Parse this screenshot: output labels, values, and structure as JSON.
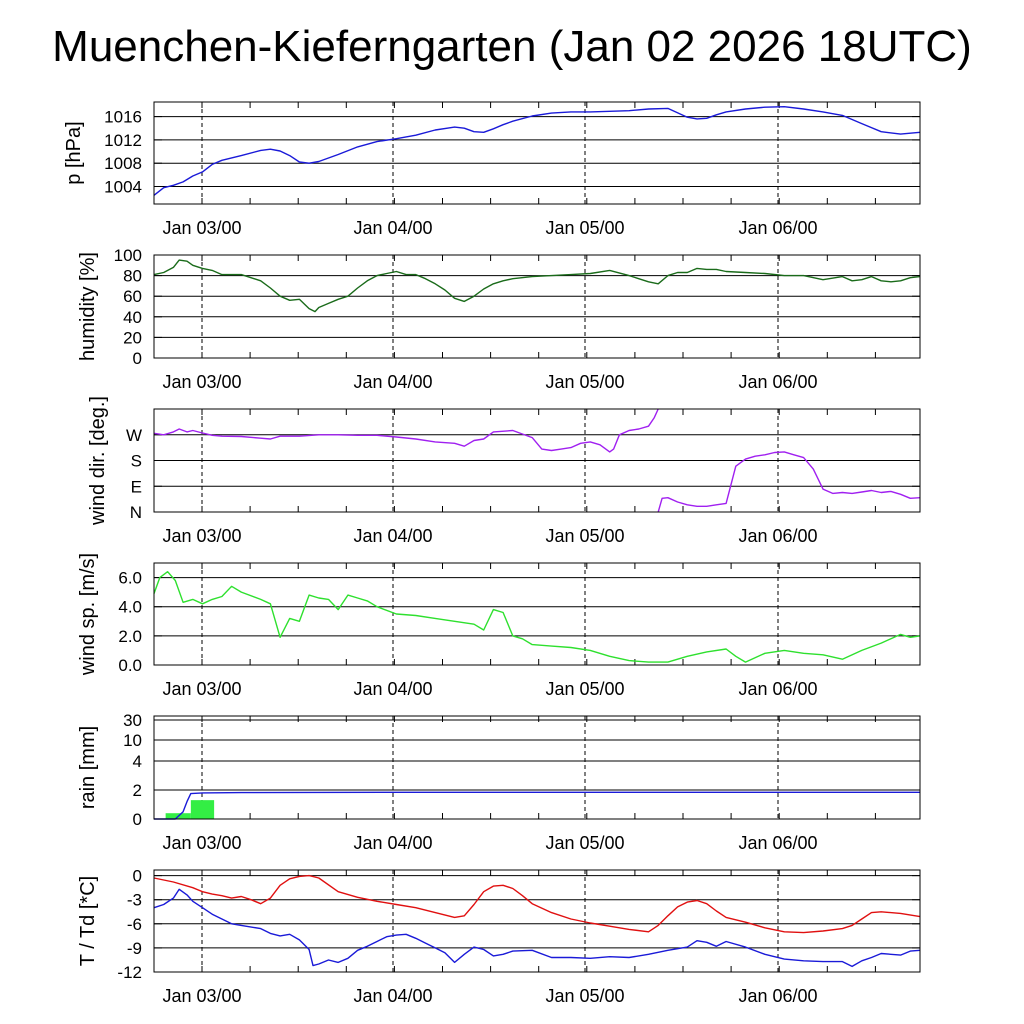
{
  "title": "Muenchen-Kieferngarten (Jan 02 2026 18UTC)",
  "chart_data": [
    {
      "type": "line",
      "ylabel": "p [hPa]",
      "ylim": [
        1001,
        1018.5
      ],
      "yticks": [
        1004,
        1008,
        1012,
        1016
      ],
      "yticklabels": [
        "1004",
        "1008",
        "1012",
        "1016"
      ],
      "xlim": [
        -0.25,
        3.7
      ],
      "xticklabels": [
        "Jan 03/00",
        "Jan 04/00",
        "Jan 05/00",
        "Jan 06/00"
      ],
      "grid": "horizontal lines at ticks, dashed vertical lines at midnight",
      "series": [
        {
          "color": "#1a1ad8",
          "x": [
            -0.25,
            -0.2,
            -0.15,
            -0.1,
            -0.05,
            0,
            0.05,
            0.1,
            0.2,
            0.3,
            0.35,
            0.4,
            0.45,
            0.5,
            0.55,
            0.6,
            0.7,
            0.8,
            0.9,
            1.0,
            1.1,
            1.2,
            1.3,
            1.35,
            1.4,
            1.45,
            1.5,
            1.55,
            1.6,
            1.7,
            1.8,
            1.9,
            2.0,
            2.1,
            2.2,
            2.3,
            2.4,
            2.5,
            2.55,
            2.6,
            2.65,
            2.7,
            2.8,
            2.9,
            3.0,
            3.1,
            3.2,
            3.3,
            3.4,
            3.5,
            3.6,
            3.7
          ],
          "y": [
            1002.5,
            1003.8,
            1004.2,
            1004.8,
            1005.8,
            1006.5,
            1007.8,
            1008.5,
            1009.3,
            1010.2,
            1010.4,
            1010.1,
            1009.3,
            1008.2,
            1008.0,
            1008.3,
            1009.5,
            1010.8,
            1011.7,
            1012.2,
            1012.8,
            1013.7,
            1014.2,
            1014.0,
            1013.4,
            1013.3,
            1013.9,
            1014.6,
            1015.2,
            1016.1,
            1016.6,
            1016.8,
            1016.8,
            1016.9,
            1017.0,
            1017.3,
            1017.4,
            1015.9,
            1015.6,
            1015.7,
            1016.3,
            1016.8,
            1017.3,
            1017.6,
            1017.7,
            1017.3,
            1016.8,
            1016.2,
            1014.8,
            1013.4,
            1013.0,
            1013.3
          ]
        }
      ]
    },
    {
      "type": "line",
      "ylabel": "humidity [%]",
      "ylim": [
        0,
        100
      ],
      "yticks": [
        0,
        20,
        40,
        60,
        80,
        100
      ],
      "yticklabels": [
        "0",
        "20",
        "40",
        "60",
        "80",
        "100"
      ],
      "xlim": [
        -0.25,
        3.7
      ],
      "xticklabels": [
        "Jan 03/00",
        "Jan 04/00",
        "Jan 05/00",
        "Jan 06/00"
      ],
      "series": [
        {
          "color": "#1a6b1a",
          "x": [
            -0.25,
            -0.2,
            -0.15,
            -0.12,
            -0.08,
            -0.05,
            0,
            0.05,
            0.1,
            0.2,
            0.3,
            0.35,
            0.4,
            0.45,
            0.5,
            0.55,
            0.58,
            0.6,
            0.65,
            0.7,
            0.75,
            0.8,
            0.85,
            0.9,
            0.95,
            1.0,
            1.05,
            1.1,
            1.15,
            1.2,
            1.25,
            1.3,
            1.35,
            1.4,
            1.45,
            1.5,
            1.55,
            1.6,
            1.7,
            1.8,
            1.9,
            2.0,
            2.1,
            2.2,
            2.3,
            2.35,
            2.4,
            2.45,
            2.5,
            2.55,
            2.6,
            2.65,
            2.7,
            2.8,
            2.9,
            3.0,
            3.1,
            3.2,
            3.3,
            3.35,
            3.4,
            3.45,
            3.5,
            3.55,
            3.6,
            3.65,
            3.7
          ],
          "y": [
            81,
            83,
            88,
            95,
            94,
            90,
            87,
            85,
            81,
            81,
            75,
            68,
            60,
            56,
            57,
            48,
            45,
            49,
            53,
            57,
            60,
            68,
            75,
            80,
            82,
            84,
            81,
            81,
            77,
            72,
            66,
            58,
            55,
            60,
            67,
            72,
            75,
            77,
            79,
            80,
            81,
            82,
            85,
            80,
            74,
            72,
            80,
            83,
            83,
            87,
            86,
            86,
            84,
            83,
            82,
            80,
            80,
            76,
            79,
            75,
            76,
            79,
            75,
            74,
            75,
            78,
            79
          ]
        }
      ]
    },
    {
      "type": "line",
      "ylabel": "wind dir. [deg.]",
      "ylim": [
        0,
        360
      ],
      "yticks": [
        0,
        90,
        180,
        270
      ],
      "yticklabels": [
        "N",
        "E",
        "S",
        "W"
      ],
      "xlim": [
        -0.25,
        3.7
      ],
      "xticklabels": [
        "Jan 03/00",
        "Jan 04/00",
        "Jan 05/00",
        "Jan 06/00"
      ],
      "series": [
        {
          "color": "#a020f0",
          "x": [
            -0.25,
            -0.2,
            -0.15,
            -0.12,
            -0.08,
            -0.05,
            0,
            0.05,
            0.1,
            0.2,
            0.3,
            0.35,
            0.4,
            0.5,
            0.6,
            0.7,
            0.8,
            0.9,
            1.0,
            1.1,
            1.2,
            1.3,
            1.35,
            1.4,
            1.45,
            1.5,
            1.6,
            1.7,
            1.75,
            1.8,
            1.85,
            1.9,
            1.95,
            2.0,
            2.05,
            2.1,
            2.12,
            2.15,
            2.2,
            2.25,
            2.3,
            2.33,
            2.35
          ],
          "y": [
            275,
            270,
            280,
            290,
            280,
            285,
            276,
            268,
            265,
            264,
            258,
            255,
            265,
            265,
            270,
            270,
            268,
            268,
            262,
            255,
            245,
            240,
            230,
            250,
            255,
            280,
            285,
            260,
            220,
            215,
            220,
            225,
            240,
            245,
            235,
            210,
            220,
            270,
            285,
            290,
            300,
            330,
            360
          ]
        },
        {
          "color": "#a020f0",
          "x": [
            2.35,
            2.37,
            2.4,
            2.45,
            2.5,
            2.55,
            2.6,
            2.65,
            2.7,
            2.75,
            2.8,
            2.85,
            2.9,
            2.95,
            3.0,
            3.05,
            3.1,
            3.15,
            3.2,
            3.25,
            3.3,
            3.35,
            3.4,
            3.45,
            3.5,
            3.55,
            3.6,
            3.65,
            3.7
          ],
          "y": [
            0,
            48,
            50,
            35,
            25,
            20,
            20,
            25,
            30,
            160,
            185,
            195,
            200,
            208,
            210,
            200,
            190,
            150,
            80,
            65,
            68,
            65,
            70,
            75,
            68,
            72,
            62,
            48,
            50
          ]
        }
      ]
    },
    {
      "type": "line",
      "ylabel": "wind sp. [m/s]",
      "ylim": [
        0,
        7
      ],
      "yticks": [
        0,
        2,
        4,
        6
      ],
      "yticklabels": [
        "0.0",
        "2.0",
        "4.0",
        "6.0"
      ],
      "xlim": [
        -0.25,
        3.7
      ],
      "xticklabels": [
        "Jan 03/00",
        "Jan 04/00",
        "Jan 05/00",
        "Jan 06/00"
      ],
      "series": [
        {
          "color": "#2ee02e",
          "x": [
            -0.25,
            -0.22,
            -0.18,
            -0.14,
            -0.1,
            -0.05,
            0,
            0.05,
            0.1,
            0.15,
            0.2,
            0.3,
            0.35,
            0.4,
            0.45,
            0.5,
            0.55,
            0.6,
            0.65,
            0.7,
            0.75,
            0.8,
            0.85,
            0.9,
            1.0,
            1.1,
            1.2,
            1.3,
            1.4,
            1.45,
            1.5,
            1.55,
            1.6,
            1.65,
            1.7,
            1.8,
            1.9,
            2.0,
            2.1,
            2.2,
            2.3,
            2.4,
            2.5,
            2.6,
            2.7,
            2.75,
            2.8,
            2.9,
            3.0,
            3.1,
            3.2,
            3.3,
            3.4,
            3.5,
            3.6,
            3.65,
            3.7
          ],
          "y": [
            4.9,
            6.0,
            6.4,
            5.8,
            4.3,
            4.5,
            4.2,
            4.5,
            4.7,
            5.4,
            5.0,
            4.5,
            4.2,
            1.9,
            3.2,
            3.0,
            4.8,
            4.6,
            4.5,
            3.8,
            4.8,
            4.6,
            4.4,
            4.0,
            3.5,
            3.4,
            3.2,
            3.0,
            2.8,
            2.4,
            3.8,
            3.6,
            2.0,
            1.8,
            1.4,
            1.3,
            1.2,
            1.0,
            0.6,
            0.3,
            0.2,
            0.2,
            0.6,
            0.9,
            1.1,
            0.6,
            0.2,
            0.8,
            1.0,
            0.8,
            0.7,
            0.4,
            1.0,
            1.5,
            2.1,
            1.9,
            2.0
          ]
        }
      ]
    },
    {
      "type": "bar",
      "ylabel": "rain [mm]",
      "yticks": [
        0,
        2,
        4,
        10,
        30
      ],
      "yticklabels": [
        "0",
        "2",
        "4",
        "10",
        "30"
      ],
      "scale": "nonlinear (stretched low range)",
      "xlim": [
        -0.25,
        3.7
      ],
      "xticklabels": [
        "Jan 03/00",
        "Jan 04/00",
        "Jan 05/00",
        "Jan 06/00"
      ],
      "bars": {
        "color": "#33ee44",
        "items": [
          {
            "x0": -0.19,
            "x1": -0.06,
            "value": 0.4
          },
          {
            "x0": -0.06,
            "x1": 0.06,
            "value": 1.3
          }
        ]
      },
      "series": [
        {
          "name": "",
          "color": "#1a1ad8",
          "x": [
            -0.25,
            -0.14,
            -0.1,
            -0.08,
            -0.06,
            0,
            0.2,
            1.0,
            2.0,
            3.0,
            3.7
          ],
          "y": [
            0,
            0,
            0.5,
            1.2,
            1.75,
            1.8,
            1.82,
            1.84,
            1.84,
            1.84,
            1.84
          ]
        }
      ]
    },
    {
      "type": "line",
      "ylabel": "T / Td [*C]",
      "ylim": [
        -12,
        0.7
      ],
      "yticks": [
        -12,
        -9,
        -6,
        -3,
        0
      ],
      "yticklabels": [
        "-12",
        "-9",
        "-6",
        "-3",
        "0"
      ],
      "xlim": [
        -0.25,
        3.7
      ],
      "xticklabels": [
        "Jan 03/00",
        "Jan 04/00",
        "Jan 05/00",
        "Jan 06/00"
      ],
      "series": [
        {
          "color": "#e01010",
          "x": [
            -0.25,
            -0.15,
            -0.05,
            0,
            0.05,
            0.1,
            0.15,
            0.2,
            0.25,
            0.3,
            0.35,
            0.4,
            0.45,
            0.5,
            0.55,
            0.6,
            0.7,
            0.8,
            0.9,
            1.0,
            1.1,
            1.2,
            1.3,
            1.35,
            1.4,
            1.45,
            1.5,
            1.55,
            1.6,
            1.65,
            1.7,
            1.8,
            1.9,
            2.0,
            2.1,
            2.2,
            2.3,
            2.35,
            2.4,
            2.45,
            2.5,
            2.55,
            2.6,
            2.65,
            2.7,
            2.8,
            2.9,
            3.0,
            3.1,
            3.2,
            3.3,
            3.35,
            3.4,
            3.45,
            3.5,
            3.6,
            3.7
          ],
          "y": [
            -0.3,
            -0.8,
            -1.5,
            -2.0,
            -2.3,
            -2.5,
            -2.8,
            -2.6,
            -3.0,
            -3.5,
            -2.8,
            -1.2,
            -0.4,
            -0.1,
            0.0,
            -0.3,
            -2.0,
            -2.7,
            -3.2,
            -3.6,
            -4.0,
            -4.6,
            -5.2,
            -5.0,
            -3.6,
            -2.0,
            -1.3,
            -1.2,
            -1.6,
            -2.5,
            -3.5,
            -4.6,
            -5.4,
            -5.9,
            -6.3,
            -6.7,
            -7.0,
            -6.2,
            -5.0,
            -3.9,
            -3.3,
            -3.1,
            -3.5,
            -4.4,
            -5.2,
            -5.8,
            -6.5,
            -7.0,
            -7.1,
            -6.9,
            -6.6,
            -6.2,
            -5.4,
            -4.6,
            -4.5,
            -4.7,
            -5.1
          ]
        },
        {
          "color": "#1a1ad8",
          "x": [
            -0.25,
            -0.2,
            -0.15,
            -0.12,
            -0.08,
            -0.05,
            0,
            0.05,
            0.1,
            0.15,
            0.2,
            0.3,
            0.35,
            0.4,
            0.45,
            0.5,
            0.55,
            0.57,
            0.6,
            0.65,
            0.7,
            0.75,
            0.8,
            0.85,
            0.9,
            0.95,
            1.0,
            1.05,
            1.1,
            1.15,
            1.2,
            1.25,
            1.3,
            1.35,
            1.4,
            1.45,
            1.5,
            1.55,
            1.6,
            1.7,
            1.8,
            1.9,
            2.0,
            2.1,
            2.2,
            2.3,
            2.4,
            2.5,
            2.55,
            2.6,
            2.65,
            2.7,
            2.8,
            2.9,
            3.0,
            3.1,
            3.2,
            3.3,
            3.35,
            3.4,
            3.45,
            3.5,
            3.6,
            3.65,
            3.7
          ],
          "y": [
            -4.0,
            -3.6,
            -2.8,
            -1.7,
            -2.4,
            -3.2,
            -4.0,
            -4.8,
            -5.4,
            -6.0,
            -6.2,
            -6.6,
            -7.2,
            -7.5,
            -7.3,
            -8.0,
            -9.2,
            -11.2,
            -11.0,
            -10.5,
            -10.8,
            -10.3,
            -9.3,
            -8.8,
            -8.2,
            -7.6,
            -7.4,
            -7.3,
            -7.8,
            -8.4,
            -9.0,
            -9.6,
            -10.8,
            -9.8,
            -8.9,
            -9.2,
            -10.0,
            -9.8,
            -9.4,
            -9.3,
            -10.2,
            -10.2,
            -10.3,
            -10.1,
            -10.2,
            -9.8,
            -9.3,
            -8.9,
            -8.1,
            -8.3,
            -8.8,
            -8.2,
            -8.9,
            -9.8,
            -10.4,
            -10.6,
            -10.7,
            -10.7,
            -11.3,
            -10.6,
            -10.2,
            -9.7,
            -9.9,
            -9.4,
            -9.3
          ]
        }
      ]
    }
  ]
}
